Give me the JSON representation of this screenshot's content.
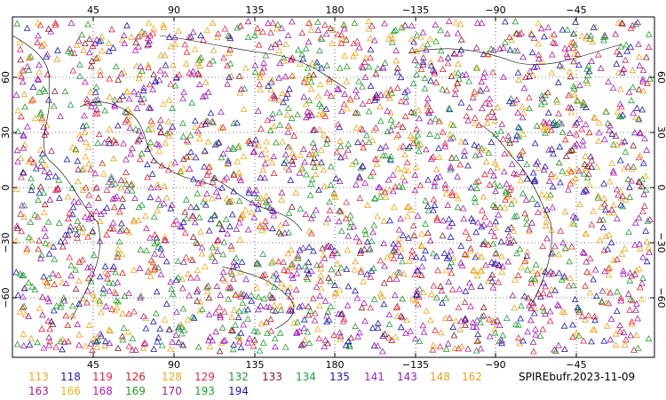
{
  "caption": "SPIREbufr.2023-11-09",
  "axes": {
    "lon_ticks": [
      "45",
      "90",
      "135",
      "180",
      "−135",
      "−90",
      "−45"
    ],
    "lat_ticks": [
      "60",
      "30",
      "0",
      "−30",
      "−60"
    ]
  },
  "legend": [
    {
      "label": "113",
      "color": "#f0a81e"
    },
    {
      "label": "118",
      "color": "#1a1ab4"
    },
    {
      "label": "119",
      "color": "#e0284a"
    },
    {
      "label": "126",
      "color": "#e02020"
    },
    {
      "label": "128",
      "color": "#f0a81e"
    },
    {
      "label": "129",
      "color": "#e03048"
    },
    {
      "label": "132",
      "color": "#2a9a2a"
    },
    {
      "label": "133",
      "color": "#8b1a1a"
    },
    {
      "label": "134",
      "color": "#20a040"
    },
    {
      "label": "135",
      "color": "#1a1ab4"
    },
    {
      "label": "141",
      "color": "#a020c0"
    },
    {
      "label": "143",
      "color": "#9020b0"
    },
    {
      "label": "148",
      "color": "#e0a020"
    },
    {
      "label": "162",
      "color": "#e8a020"
    },
    {
      "label": "163",
      "color": "#a020a0"
    },
    {
      "label": "166",
      "color": "#f0b020"
    },
    {
      "label": "168",
      "color": "#b020c0"
    },
    {
      "label": "169",
      "color": "#2a9a2a"
    },
    {
      "label": "170",
      "color": "#a02090"
    },
    {
      "label": "193",
      "color": "#20a030"
    },
    {
      "label": "194",
      "color": "#1a1ab4"
    }
  ]
}
